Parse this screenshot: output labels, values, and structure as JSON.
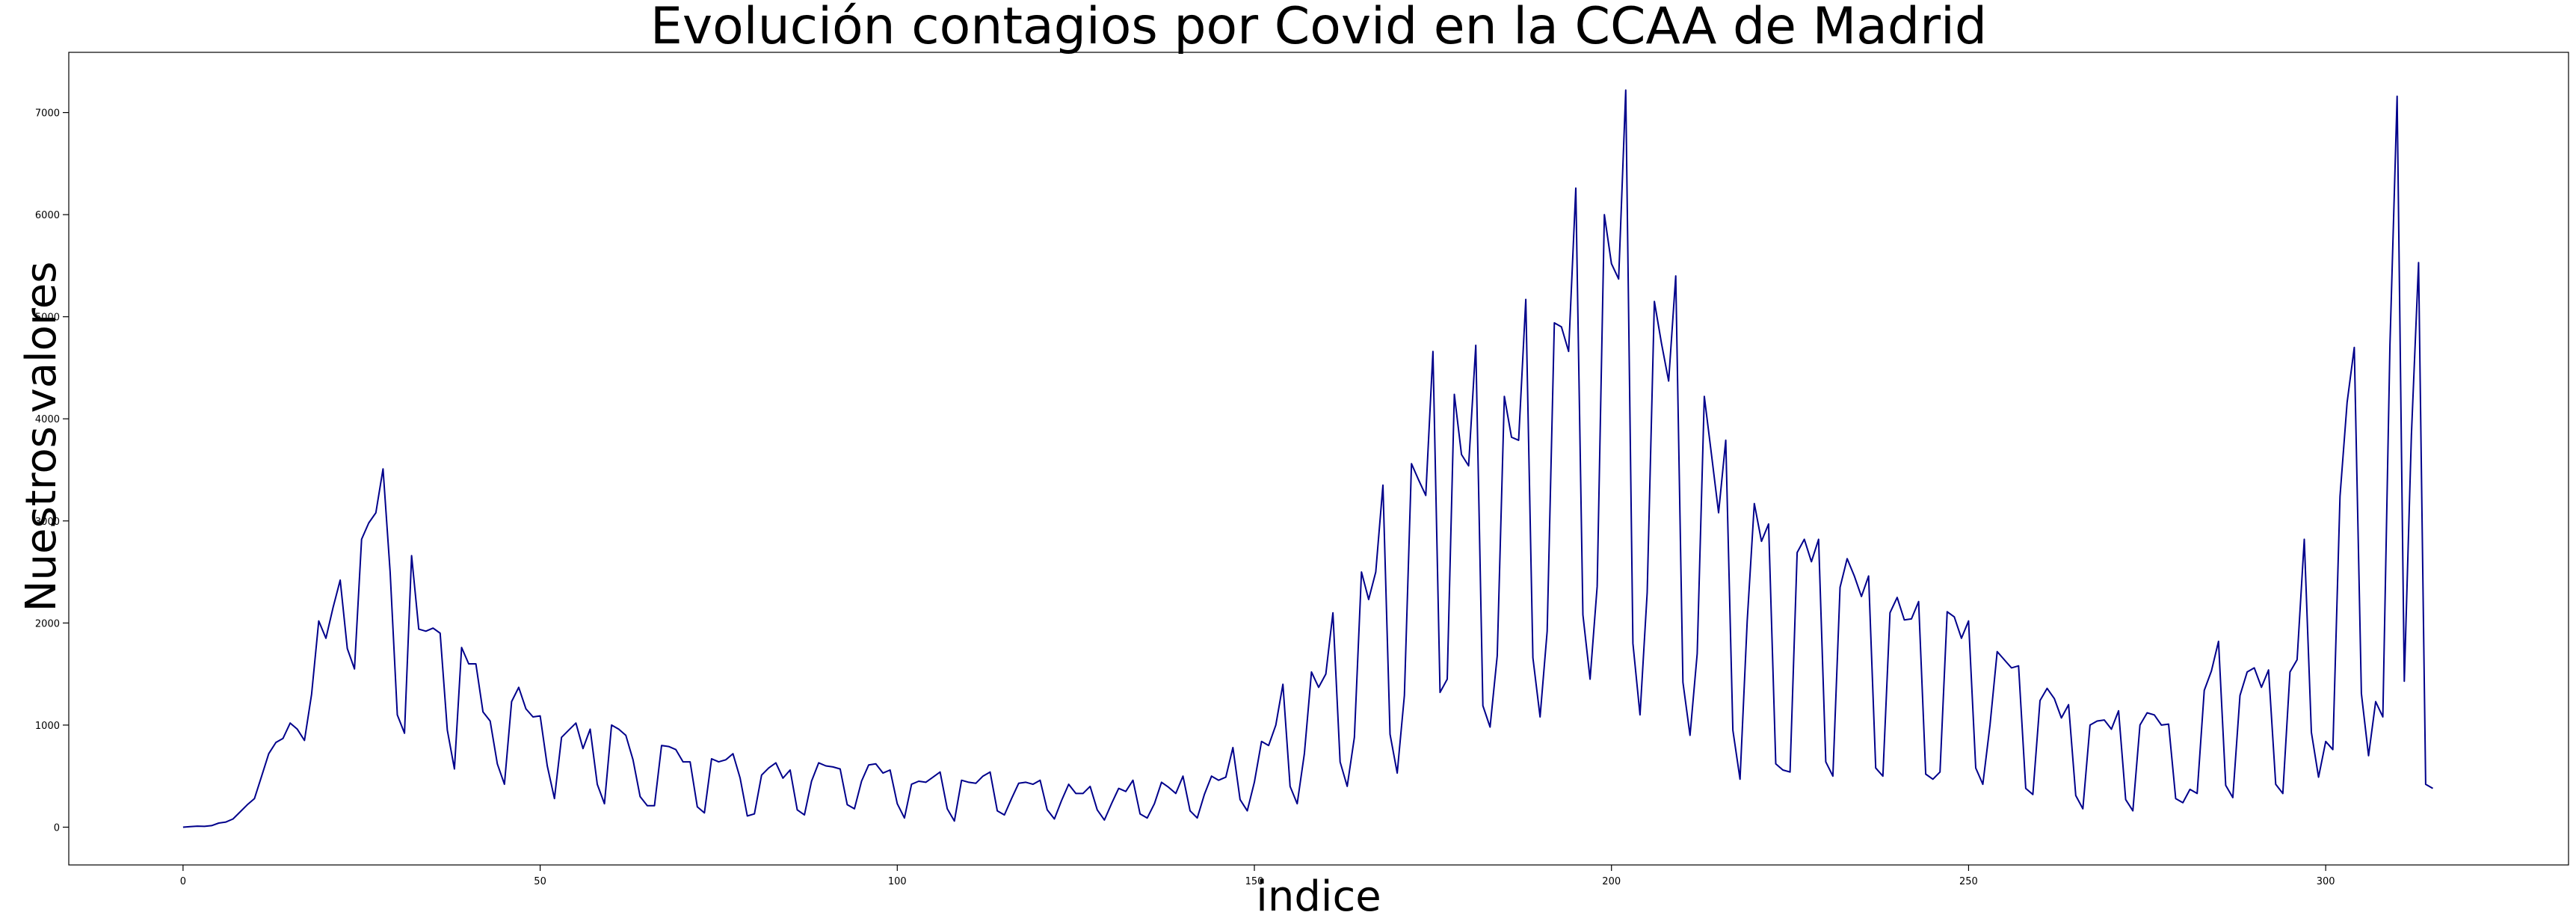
{
  "chart_data": {
    "type": "line",
    "title": "Evolución contagios por Covid en la CCAA de Madrid",
    "xlabel": "indice",
    "ylabel": "Nuestros valores",
    "xlim": [
      -16,
      334
    ],
    "ylim": [
      -370,
      7590
    ],
    "xticks": [
      "0",
      "50",
      "100",
      "150",
      "200",
      "250",
      "300"
    ],
    "yticks": [
      "0",
      "1000",
      "2000",
      "3000",
      "4000",
      "5000",
      "6000",
      "7000"
    ],
    "grid": false,
    "legend": "none",
    "color": "#00008b",
    "series": [
      {
        "values": [
          0,
          5,
          10,
          8,
          15,
          40,
          50,
          80,
          150,
          220,
          280,
          500,
          720,
          830,
          870,
          1020,
          960,
          850,
          1300,
          2020,
          1850,
          2150,
          2420,
          1750,
          1550,
          2820,
          2980,
          3080,
          3510,
          2500,
          1100,
          920,
          2660,
          1940,
          1920,
          1950,
          1900,
          950,
          570,
          1760,
          1600,
          1600,
          1130,
          1040,
          620,
          420,
          1230,
          1370,
          1160,
          1080,
          1090,
          600,
          280,
          880,
          950,
          1020,
          770,
          960,
          420,
          230,
          1000,
          960,
          900,
          660,
          300,
          210,
          210,
          800,
          790,
          760,
          640,
          640,
          200,
          140,
          670,
          640,
          660,
          720,
          480,
          110,
          130,
          510,
          580,
          630,
          480,
          560,
          170,
          120,
          450,
          630,
          600,
          590,
          570,
          220,
          180,
          450,
          610,
          620,
          530,
          560,
          230,
          90,
          420,
          450,
          440,
          490,
          540,
          180,
          60,
          460,
          440,
          430,
          500,
          540,
          160,
          120,
          280,
          430,
          440,
          420,
          460,
          170,
          80,
          260,
          420,
          330,
          330,
          400,
          170,
          70,
          230,
          380,
          350,
          460,
          130,
          90,
          230,
          440,
          390,
          330,
          500,
          160,
          90,
          320,
          500,
          460,
          490,
          780,
          270,
          160,
          440,
          840,
          800,
          1000,
          1400,
          400,
          230,
          720,
          1520,
          1370,
          1500,
          2100,
          640,
          400,
          880,
          2500,
          2230,
          2500,
          3350,
          910,
          530,
          1290,
          3560,
          3400,
          3250,
          4660,
          1320,
          1450,
          4240,
          3650,
          3540,
          4720,
          1190,
          980,
          1680,
          4220,
          3820,
          3790,
          5170,
          1660,
          1080,
          1920,
          4940,
          4900,
          4660,
          6260,
          2080,
          1450,
          2360,
          6000,
          5520,
          5370,
          7220,
          1800,
          1100,
          2300,
          5150,
          4740,
          4370,
          5400,
          1420,
          900,
          1700,
          4220,
          3650,
          3080,
          3790,
          950,
          470,
          2020,
          3170,
          2800,
          2970,
          620,
          560,
          540,
          2690,
          2820,
          2600,
          2820,
          640,
          500,
          2350,
          2630,
          2460,
          2260,
          2460,
          580,
          500,
          2100,
          2250,
          2030,
          2040,
          2210,
          520,
          470,
          540,
          2110,
          2060,
          1850,
          2020,
          580,
          420,
          1000,
          1720,
          1640,
          1560,
          1580,
          380,
          320,
          1240,
          1360,
          1260,
          1070,
          1200,
          310,
          180,
          1000,
          1040,
          1050,
          960,
          1140,
          270,
          160,
          1000,
          1120,
          1100,
          1000,
          1010,
          280,
          240,
          370,
          330,
          1340,
          1530,
          1820,
          410,
          290,
          1290,
          1520,
          1560,
          1370,
          1540,
          420,
          330,
          1520,
          1640,
          2820,
          930,
          490,
          840,
          760,
          3240,
          4160,
          4700,
          1310,
          700,
          1230,
          1080,
          4720,
          7160,
          1430,
          3840,
          5530,
          420,
          380
        ]
      }
    ]
  }
}
